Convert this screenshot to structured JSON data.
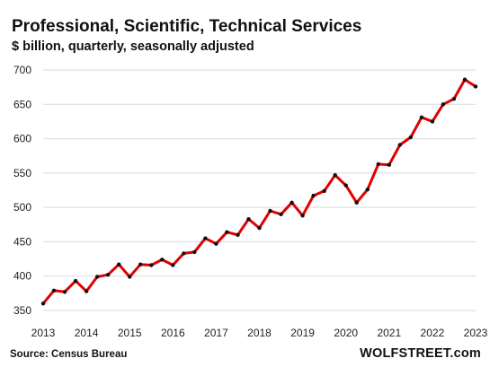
{
  "chart_data": {
    "type": "line",
    "title": "Professional,  Scientific, Technical Services",
    "subtitle": "$ billion, quarterly, seasonally adjusted",
    "source": "Source: Census Bureau",
    "brand": "WOLFSTREET.com",
    "x_ticks": [
      "2013",
      "2014",
      "2015",
      "2016",
      "2017",
      "2018",
      "2019",
      "2020",
      "2021",
      "2022",
      "2023"
    ],
    "y_ticks": [
      350,
      400,
      450,
      500,
      550,
      600,
      650,
      700
    ],
    "xlim": [
      2013,
      2023
    ],
    "ylim": [
      350,
      700
    ],
    "grid": true,
    "line_color": "#e00000",
    "series": [
      {
        "x": [
          2013.0,
          2013.25,
          2013.5,
          2013.75,
          2014.0,
          2014.25,
          2014.5,
          2014.75,
          2015.0,
          2015.25,
          2015.5,
          2015.75,
          2016.0,
          2016.25,
          2016.5,
          2016.75,
          2017.0,
          2017.25,
          2017.5,
          2017.75,
          2018.0,
          2018.25,
          2018.5,
          2018.75,
          2019.0,
          2019.25,
          2019.5,
          2019.75,
          2020.0,
          2020.25,
          2020.5,
          2020.75,
          2021.0,
          2021.25,
          2021.5,
          2021.75,
          2022.0,
          2022.25,
          2022.5,
          2022.75,
          2023.0
        ],
        "values": [
          360,
          379,
          377,
          393,
          378,
          399,
          402,
          417,
          399,
          417,
          416,
          424,
          416,
          433,
          435,
          455,
          447,
          464,
          460,
          483,
          470,
          495,
          490,
          507,
          488,
          517,
          524,
          547,
          532,
          507,
          526,
          563,
          562,
          591,
          602,
          631,
          625,
          650,
          658,
          686,
          676
        ]
      }
    ]
  }
}
